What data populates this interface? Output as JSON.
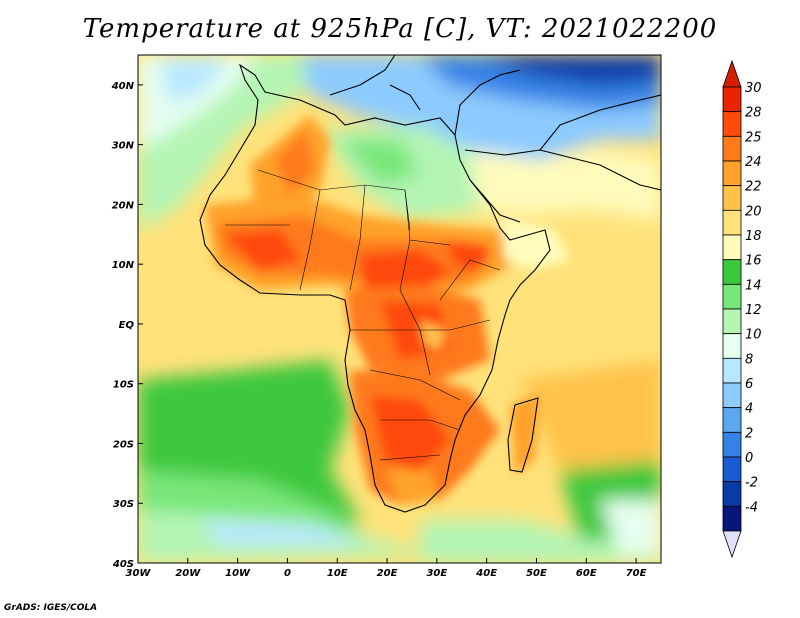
{
  "title": "Temperature at 925hPa [C], VT: 2021022200",
  "credit": "GrADS: IGES/COLA",
  "map": {
    "lon_range": [
      -30,
      75
    ],
    "lat_range": [
      -40,
      45
    ],
    "lon_ticks": [
      {
        "value": -30,
        "label": "30W"
      },
      {
        "value": -20,
        "label": "20W"
      },
      {
        "value": -10,
        "label": "10W"
      },
      {
        "value": 0,
        "label": "0"
      },
      {
        "value": 10,
        "label": "10E"
      },
      {
        "value": 20,
        "label": "20E"
      },
      {
        "value": 30,
        "label": "30E"
      },
      {
        "value": 40,
        "label": "40E"
      },
      {
        "value": 50,
        "label": "50E"
      },
      {
        "value": 60,
        "label": "60E"
      },
      {
        "value": 70,
        "label": "70E"
      }
    ],
    "lat_ticks": [
      {
        "value": 40,
        "label": "40N"
      },
      {
        "value": 30,
        "label": "30N"
      },
      {
        "value": 20,
        "label": "20N"
      },
      {
        "value": 10,
        "label": "10N"
      },
      {
        "value": 0,
        "label": "EQ"
      },
      {
        "value": -10,
        "label": "10S"
      },
      {
        "value": -20,
        "label": "20S"
      },
      {
        "value": -30,
        "label": "30S"
      },
      {
        "value": -40,
        "label": "40S"
      }
    ]
  },
  "colorbar": {
    "levels": [
      {
        "label": "30",
        "color": "#e82500"
      },
      {
        "label": "28",
        "color": "#ff4a0a"
      },
      {
        "label": "25",
        "color": "#ff7a1a"
      },
      {
        "label": "24",
        "color": "#ffa22c"
      },
      {
        "label": "22",
        "color": "#ffc249"
      },
      {
        "label": "20",
        "color": "#ffe27a"
      },
      {
        "label": "18",
        "color": "#fffcbc"
      },
      {
        "label": "16",
        "color": "#3cc83c"
      },
      {
        "label": "14",
        "color": "#78e678"
      },
      {
        "label": "12",
        "color": "#b4f5b4"
      },
      {
        "label": "10",
        "color": "#e6fff0"
      },
      {
        "label": "8",
        "color": "#b8e8ff"
      },
      {
        "label": "6",
        "color": "#8ccaff"
      },
      {
        "label": "4",
        "color": "#5aa8f0"
      },
      {
        "label": "2",
        "color": "#3482e6"
      },
      {
        "label": "0",
        "color": "#1a5ad2"
      },
      {
        "label": "-2",
        "color": "#0a3aa6"
      },
      {
        "label": "-4",
        "color": "#08157a"
      }
    ],
    "top_color": "#d42000",
    "bottom_color": "#e0e0f8"
  }
}
